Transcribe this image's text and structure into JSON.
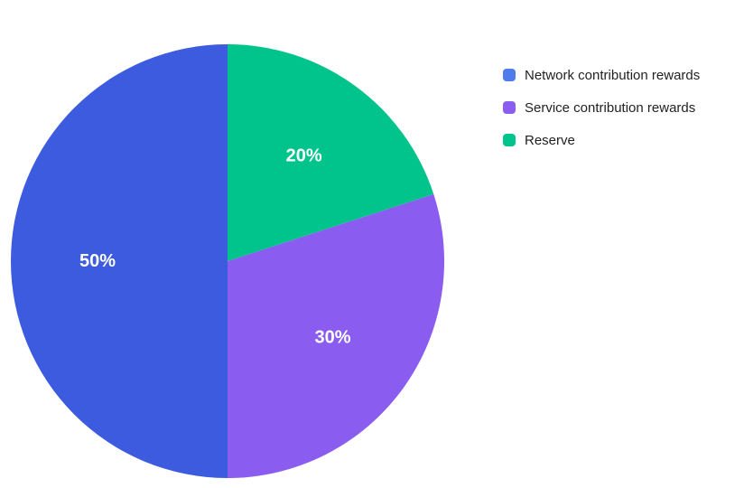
{
  "chart_data": {
    "type": "pie",
    "categories": [
      "Network contribution rewards",
      "Service contribution rewards",
      "Reserve"
    ],
    "values": [
      50,
      30,
      20
    ],
    "data_labels": [
      "50%",
      "30%",
      "20%"
    ],
    "colors": [
      "#3D5BDE",
      "#8B5CF0",
      "#00C48C"
    ],
    "legend_colors": [
      "#4F7BEC",
      "#8B5CF0",
      "#00C48C"
    ],
    "legend_position": "top-right",
    "title": ""
  }
}
